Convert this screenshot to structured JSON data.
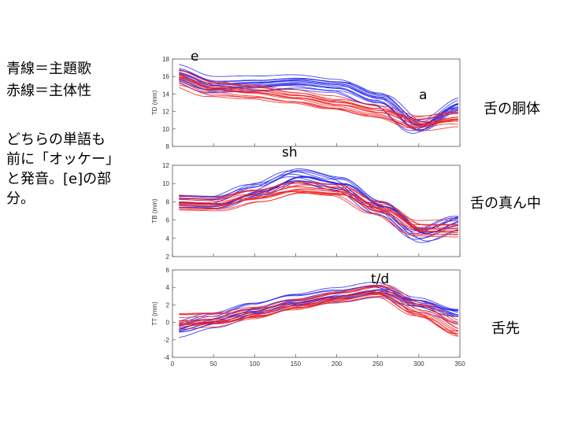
{
  "legend": {
    "blue_text": "青線＝主題歌",
    "red_text": "赤線＝主体性",
    "blue_color": "#2222ee",
    "red_color": "#ee2222"
  },
  "description": [
    "どちらの単語も",
    "前に「オッケー」",
    "と発音。[e]の部",
    "分。"
  ],
  "panel_labels": [
    "舌の胴体",
    "舌の真ん中",
    "舌先"
  ],
  "annotations": [
    "e",
    "a",
    "sh",
    "t/d"
  ],
  "chart_data": [
    {
      "type": "line",
      "panel": "TD",
      "ylabel": "TD (mm)",
      "ylim": [
        8,
        18
      ],
      "yticks": [
        8,
        10,
        12,
        14,
        16,
        18
      ],
      "xlim": [
        0,
        350
      ],
      "series": [
        {
          "name": "主題歌 (blue)",
          "color": "#2222ee",
          "x": [
            0,
            50,
            100,
            150,
            200,
            250,
            300,
            350
          ],
          "y": [
            16.4,
            15.0,
            15.2,
            15.5,
            15.1,
            13.6,
            10.4,
            12.8
          ]
        },
        {
          "name": "主体性 (red)",
          "color": "#ee2222",
          "x": [
            0,
            50,
            100,
            150,
            200,
            250,
            300,
            350
          ],
          "y": [
            16.0,
            14.6,
            14.2,
            13.6,
            12.8,
            11.9,
            10.6,
            11.2
          ]
        }
      ]
    },
    {
      "type": "line",
      "panel": "TB",
      "ylabel": "TB (mm)",
      "ylim": [
        2,
        12
      ],
      "yticks": [
        2,
        4,
        6,
        8,
        10,
        12
      ],
      "xlim": [
        0,
        350
      ],
      "series": [
        {
          "name": "主題歌 (blue)",
          "color": "#2222ee",
          "x": [
            0,
            50,
            100,
            150,
            200,
            250,
            300,
            350
          ],
          "y": [
            8.0,
            7.8,
            9.2,
            10.8,
            10.0,
            7.5,
            4.6,
            6.0
          ]
        },
        {
          "name": "主体性 (red)",
          "color": "#ee2222",
          "x": [
            0,
            50,
            100,
            150,
            200,
            250,
            300,
            350
          ],
          "y": [
            8.0,
            7.9,
            8.8,
            9.7,
            9.4,
            7.5,
            5.2,
            5.2
          ]
        }
      ]
    },
    {
      "type": "line",
      "panel": "TT",
      "ylabel": "TT (mm)",
      "ylim": [
        -4,
        6
      ],
      "yticks": [
        -4,
        -2,
        0,
        2,
        4,
        6
      ],
      "xlim": [
        0,
        350
      ],
      "xticks": [
        0,
        50,
        100,
        150,
        200,
        250,
        300,
        350
      ],
      "series": [
        {
          "name": "主題歌 (blue)",
          "color": "#2222ee",
          "x": [
            0,
            50,
            100,
            150,
            200,
            250,
            300,
            350
          ],
          "y": [
            -1.0,
            0.0,
            1.2,
            2.2,
            2.9,
            3.6,
            2.0,
            0.8
          ]
        },
        {
          "name": "主体性 (red)",
          "color": "#ee2222",
          "x": [
            0,
            50,
            100,
            150,
            200,
            250,
            300,
            350
          ],
          "y": [
            0.2,
            0.4,
            1.2,
            2.2,
            3.0,
            3.7,
            1.4,
            -0.8
          ]
        }
      ]
    }
  ]
}
